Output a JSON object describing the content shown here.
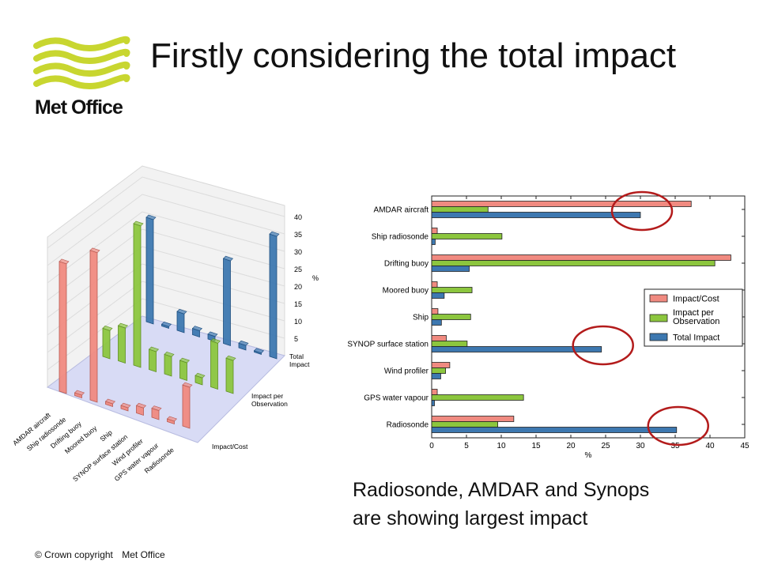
{
  "header": {
    "title": "Firstly considering the total impact",
    "logo_text": "Met Office"
  },
  "colors": {
    "logo_green": "#c8d630",
    "impact_cost": "#f08a80",
    "per_obs": "#8cc63e",
    "total": "#3d78b0",
    "circle": "#b31b1b"
  },
  "caption": {
    "line1": "Radiosonde, AMDAR and Synops",
    "line2": "are showing largest impact"
  },
  "footer": {
    "copyright": "© Crown copyright",
    "org": "Met Office"
  },
  "chart_data": [
    {
      "type": "bar",
      "orientation": "3d",
      "categories": [
        "AMDAR aircraft",
        "Ship radiosonde",
        "Drifting buoy",
        "Moored buoy",
        "Ship",
        "SYNOP surface station",
        "Wind profiler",
        "GPS water vapour",
        "Radiosonde"
      ],
      "series": [
        {
          "name": "Impact/Cost",
          "values": [
            37.3,
            0.8,
            43.0,
            0.8,
            0.9,
            2.1,
            2.6,
            0.8,
            11.8
          ]
        },
        {
          "name": "Impact per Observation",
          "values": [
            8.1,
            10.1,
            40.7,
            5.8,
            5.6,
            5.1,
            2.0,
            13.2,
            9.5
          ]
        },
        {
          "name": "Total Impact",
          "values": [
            30.0,
            0.5,
            5.4,
            1.8,
            1.4,
            24.4,
            1.3,
            0.4,
            35.2
          ]
        }
      ],
      "zticks": [
        "5",
        "10",
        "15",
        "20",
        "25",
        "30",
        "35",
        "40"
      ],
      "zlabel": "%"
    },
    {
      "type": "bar",
      "orientation": "horizontal",
      "categories": [
        "AMDAR aircraft",
        "Ship radiosonde",
        "Drifting buoy",
        "Moored buoy",
        "Ship",
        "SYNOP surface station",
        "Wind profiler",
        "GPS water vapour",
        "Radiosonde"
      ],
      "series": [
        {
          "name": "Impact/Cost",
          "values": [
            37.3,
            0.8,
            43.0,
            0.8,
            0.9,
            2.1,
            2.6,
            0.8,
            11.8
          ]
        },
        {
          "name": "Impact per Observation",
          "values": [
            8.1,
            10.1,
            40.7,
            5.8,
            5.6,
            5.1,
            2.0,
            13.2,
            9.5
          ]
        },
        {
          "name": "Total Impact",
          "values": [
            30.0,
            0.5,
            5.4,
            1.8,
            1.4,
            24.4,
            1.3,
            0.4,
            35.2
          ]
        }
      ],
      "xlim": [
        0,
        45
      ],
      "xticks": [
        0,
        5,
        10,
        15,
        20,
        25,
        30,
        35,
        40,
        45
      ],
      "xlabel": "%",
      "legend_position": "right",
      "highlighted": [
        "AMDAR aircraft",
        "SYNOP surface station",
        "Radiosonde"
      ]
    }
  ]
}
